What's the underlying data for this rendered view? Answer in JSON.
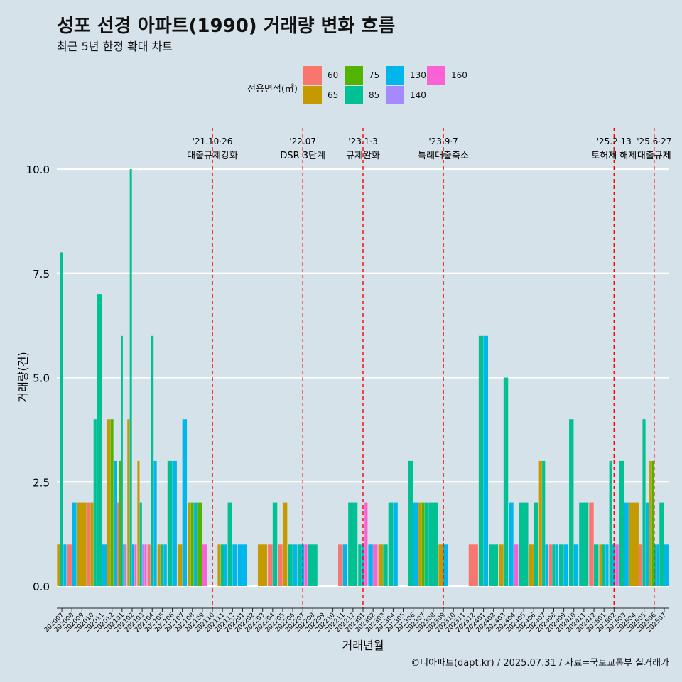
{
  "title": "성포 선경 아파트(1990) 거래량 변화 흐름",
  "subtitle": "최근 5년 한정 확대 차트",
  "caption": "©디아파트(dapt.kr) / 2025.07.31 / 자료=국토교통부 실거래가",
  "legend": {
    "title": "전용면적(㎡)",
    "items": [
      {
        "label": "60",
        "color": "#F8766D"
      },
      {
        "label": "65",
        "color": "#C49A00"
      },
      {
        "label": "75",
        "color": "#53B400"
      },
      {
        "label": "85",
        "color": "#00C094"
      },
      {
        "label": "130",
        "color": "#00B6EB"
      },
      {
        "label": "140",
        "color": "#A58AFF"
      },
      {
        "label": "160",
        "color": "#FB61D7"
      }
    ]
  },
  "chart_data": {
    "type": "bar",
    "xlabel": "거래년월",
    "ylabel": "거래량(건)",
    "ylim": [
      0,
      10
    ],
    "yticks": [
      "0.0",
      "2.5",
      "5.0",
      "7.5",
      "10.0"
    ],
    "grid": true,
    "legend_position": "top",
    "categories": [
      "202007",
      "202008",
      "202009",
      "202010",
      "202011",
      "202012",
      "202101",
      "202102",
      "202103",
      "202104",
      "202105",
      "202106",
      "202107",
      "202108",
      "202109",
      "202110",
      "202111",
      "202112",
      "202201",
      "202202",
      "202203",
      "202204",
      "202205",
      "202206",
      "202207",
      "202208",
      "202209",
      "202210",
      "202211",
      "202212",
      "202301",
      "202302",
      "202303",
      "202304",
      "202305",
      "202306",
      "202307",
      "202308",
      "202309",
      "202310",
      "202311",
      "202312",
      "202401",
      "202402",
      "202403",
      "202404",
      "202405",
      "202406",
      "202407",
      "202408",
      "202409",
      "202410",
      "202411",
      "202412",
      "202501",
      "202502",
      "202503",
      "202504",
      "202505",
      "202506",
      "202507"
    ],
    "series": [
      {
        "name": "60",
        "values": [
          0,
          1,
          0,
          2,
          0,
          0,
          2,
          0,
          0,
          1,
          0,
          0,
          0,
          0,
          0,
          0,
          0,
          0,
          0,
          0,
          0,
          1,
          1,
          0,
          0,
          0,
          0,
          0,
          1,
          0,
          0,
          0,
          0,
          0,
          0,
          0,
          0,
          0,
          0,
          0,
          0,
          1,
          0,
          0,
          0,
          0,
          0,
          0,
          0,
          1,
          0,
          0,
          0,
          2,
          0,
          0,
          0,
          0,
          1,
          0,
          0
        ]
      },
      {
        "name": "65",
        "values": [
          1,
          0,
          2,
          2,
          0,
          4,
          0,
          4,
          3,
          0,
          1,
          0,
          1,
          2,
          0,
          0,
          1,
          0,
          0,
          0,
          1,
          0,
          2,
          0,
          0,
          0,
          0,
          0,
          0,
          0,
          0,
          0,
          1,
          0,
          0,
          0,
          2,
          0,
          1,
          0,
          0,
          0,
          0,
          0,
          1,
          0,
          0,
          1,
          3,
          0,
          0,
          0,
          0,
          0,
          1,
          0,
          0,
          2,
          0,
          3,
          0
        ]
      },
      {
        "name": "75",
        "values": [
          0,
          0,
          0,
          0,
          0,
          4,
          3,
          0,
          0,
          0,
          0,
          0,
          0,
          2,
          2,
          0,
          0,
          0,
          0,
          0,
          0,
          0,
          0,
          0,
          0,
          0,
          0,
          0,
          0,
          0,
          0,
          0,
          0,
          0,
          0,
          0,
          2,
          0,
          0,
          0,
          0,
          0,
          0,
          0,
          0,
          0,
          0,
          0,
          0,
          0,
          0,
          0,
          0,
          0,
          0,
          0,
          0,
          0,
          0,
          3,
          0
        ]
      },
      {
        "name": "85",
        "values": [
          8,
          0,
          0,
          4,
          7,
          0,
          6,
          10,
          2,
          6,
          1,
          3,
          0,
          0,
          0,
          0,
          1,
          2,
          0,
          0,
          0,
          2,
          0,
          1,
          1,
          1,
          0,
          0,
          0,
          2,
          1,
          0,
          1,
          2,
          0,
          3,
          2,
          2,
          0,
          0,
          0,
          0,
          6,
          1,
          5,
          0,
          2,
          2,
          3,
          1,
          1,
          4,
          2,
          1,
          1,
          3,
          3,
          0,
          4,
          1,
          2
        ]
      },
      {
        "name": "130",
        "values": [
          1,
          2,
          0,
          0,
          1,
          3,
          1,
          1,
          0,
          3,
          1,
          3,
          4,
          2,
          0,
          0,
          1,
          1,
          1,
          0,
          0,
          0,
          0,
          1,
          1,
          0,
          0,
          0,
          1,
          0,
          1,
          1,
          0,
          2,
          0,
          2,
          0,
          0,
          1,
          0,
          0,
          0,
          6,
          0,
          0,
          2,
          0,
          0,
          1,
          1,
          1,
          1,
          0,
          0,
          1,
          1,
          2,
          0,
          2,
          1,
          1
        ]
      },
      {
        "name": "140",
        "values": [
          0,
          0,
          0,
          0,
          0,
          0,
          0,
          0,
          1,
          0,
          0,
          0,
          0,
          0,
          0,
          0,
          0,
          0,
          0,
          0,
          0,
          0,
          0,
          0,
          0,
          0,
          0,
          0,
          0,
          0,
          0,
          0,
          0,
          0,
          0,
          0,
          0,
          0,
          0,
          0,
          0,
          0,
          0,
          0,
          0,
          0,
          0,
          0,
          0,
          0,
          0,
          0,
          0,
          0,
          0,
          0,
          0,
          0,
          0,
          0,
          0
        ]
      },
      {
        "name": "160",
        "values": [
          0,
          0,
          0,
          0,
          0,
          0,
          1,
          1,
          1,
          0,
          0,
          0,
          0,
          0,
          1,
          0,
          0,
          0,
          0,
          0,
          0,
          0,
          0,
          0,
          1,
          0,
          0,
          0,
          0,
          0,
          2,
          1,
          0,
          0,
          0,
          0,
          0,
          0,
          0,
          0,
          0,
          0,
          0,
          0,
          0,
          1,
          0,
          0,
          0,
          0,
          0,
          0,
          0,
          0,
          0,
          1,
          0,
          0,
          0,
          0,
          0
        ]
      }
    ],
    "events": [
      {
        "category": "202110",
        "date": "'21.10·26",
        "label": "대출규제강화"
      },
      {
        "category": "202207",
        "date": "'22.07",
        "label": "DSR 3단계"
      },
      {
        "category": "202301",
        "date": "'23.1·3",
        "label": "규제완화"
      },
      {
        "category": "202309",
        "date": "'23.9·7",
        "label": "특례대출축소"
      },
      {
        "category": "202502",
        "date": "'25.2·13",
        "label": "토허제 해제"
      },
      {
        "category": "202506",
        "date": "'25.6·27",
        "label": "대출규제"
      }
    ]
  }
}
